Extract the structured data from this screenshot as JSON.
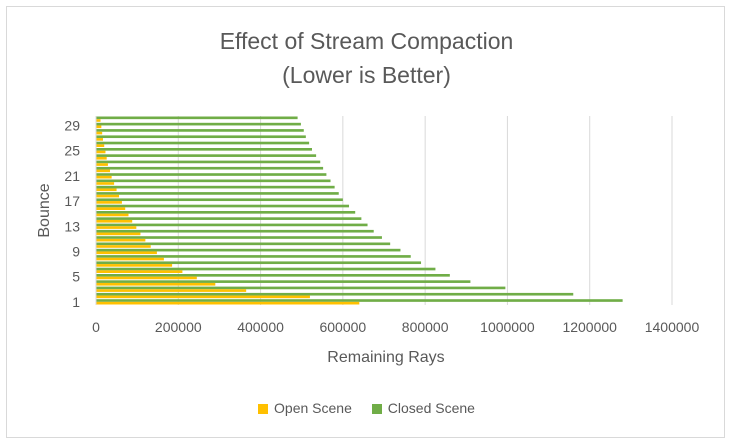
{
  "chart_data": {
    "type": "bar",
    "orientation": "horizontal",
    "stacked": false,
    "title": "Effect of Stream Compaction",
    "subtitle": "(Lower is Better)",
    "xlabel": "Remaining Rays",
    "ylabel": "Bounce",
    "xlim": [
      0,
      1400000
    ],
    "xticks": [
      "0",
      "200000",
      "400000",
      "600000",
      "800000",
      "1000000",
      "1200000",
      "1400000"
    ],
    "yticks_shown": [
      "1",
      "5",
      "9",
      "13",
      "17",
      "21",
      "25",
      "29"
    ],
    "categories": [
      1,
      2,
      3,
      4,
      5,
      6,
      7,
      8,
      9,
      10,
      11,
      12,
      13,
      14,
      15,
      16,
      17,
      18,
      19,
      20,
      21,
      22,
      23,
      24,
      25,
      26,
      27,
      28,
      29,
      30
    ],
    "grid": "vertical",
    "legend_position": "bottom",
    "series": [
      {
        "name": "Open Scene",
        "color": "#ffc000",
        "values": [
          640000,
          520000,
          365000,
          290000,
          245000,
          210000,
          185000,
          165000,
          148000,
          133000,
          120000,
          108000,
          98000,
          88000,
          79000,
          71000,
          63000,
          56000,
          50000,
          44000,
          38000,
          34000,
          29000,
          26000,
          23000,
          20000,
          17000,
          15000,
          13000,
          11000
        ]
      },
      {
        "name": "Closed Scene",
        "color": "#70ad47",
        "values": [
          1280000,
          1160000,
          995000,
          910000,
          860000,
          825000,
          790000,
          765000,
          740000,
          715000,
          695000,
          675000,
          660000,
          645000,
          630000,
          615000,
          600000,
          590000,
          580000,
          570000,
          560000,
          552000,
          545000,
          535000,
          525000,
          518000,
          510000,
          505000,
          498000,
          490000
        ]
      }
    ]
  }
}
